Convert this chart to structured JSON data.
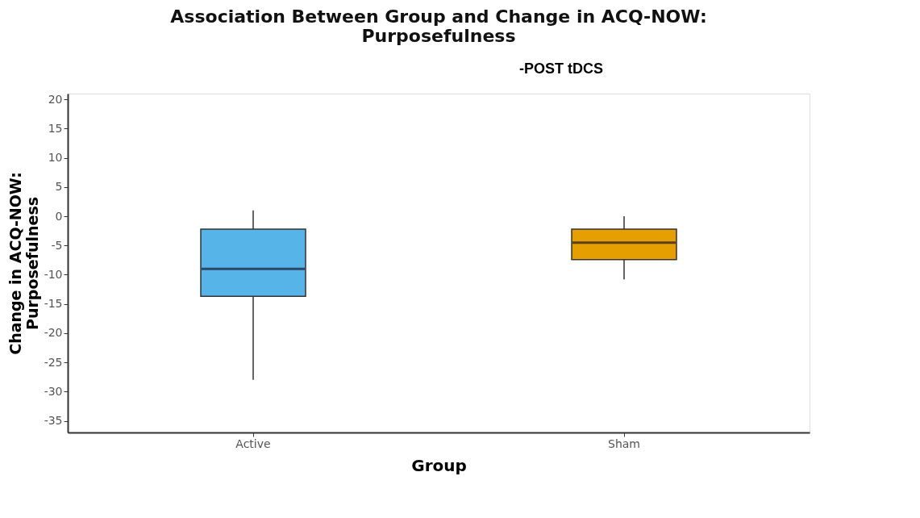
{
  "chart_data": {
    "type": "box",
    "title": "Association Between Group and Change in ACQ-NOW:\nPurposefulness",
    "xlabel": "Group",
    "ylabel": "Change in ACQ-NOW:\nPurposefulness",
    "annotations": [
      "-POST tDCS"
    ],
    "categories": [
      "Active",
      "Sham"
    ],
    "colors": [
      "#56b4e9",
      "#e69f00"
    ],
    "boxes": [
      {
        "low": -28,
        "q1": -13.7,
        "median": -9,
        "q3": -2.2,
        "high": 1
      },
      {
        "low": -10.8,
        "q1": -7.4,
        "median": -4.5,
        "q3": -2.2,
        "high": 0
      }
    ],
    "ylim": [
      -37,
      21
    ],
    "yticks": [
      20,
      15,
      10,
      5,
      0,
      -5,
      -10,
      -15,
      -20,
      -25,
      -30,
      -35
    ],
    "grid": false,
    "legend": false
  }
}
